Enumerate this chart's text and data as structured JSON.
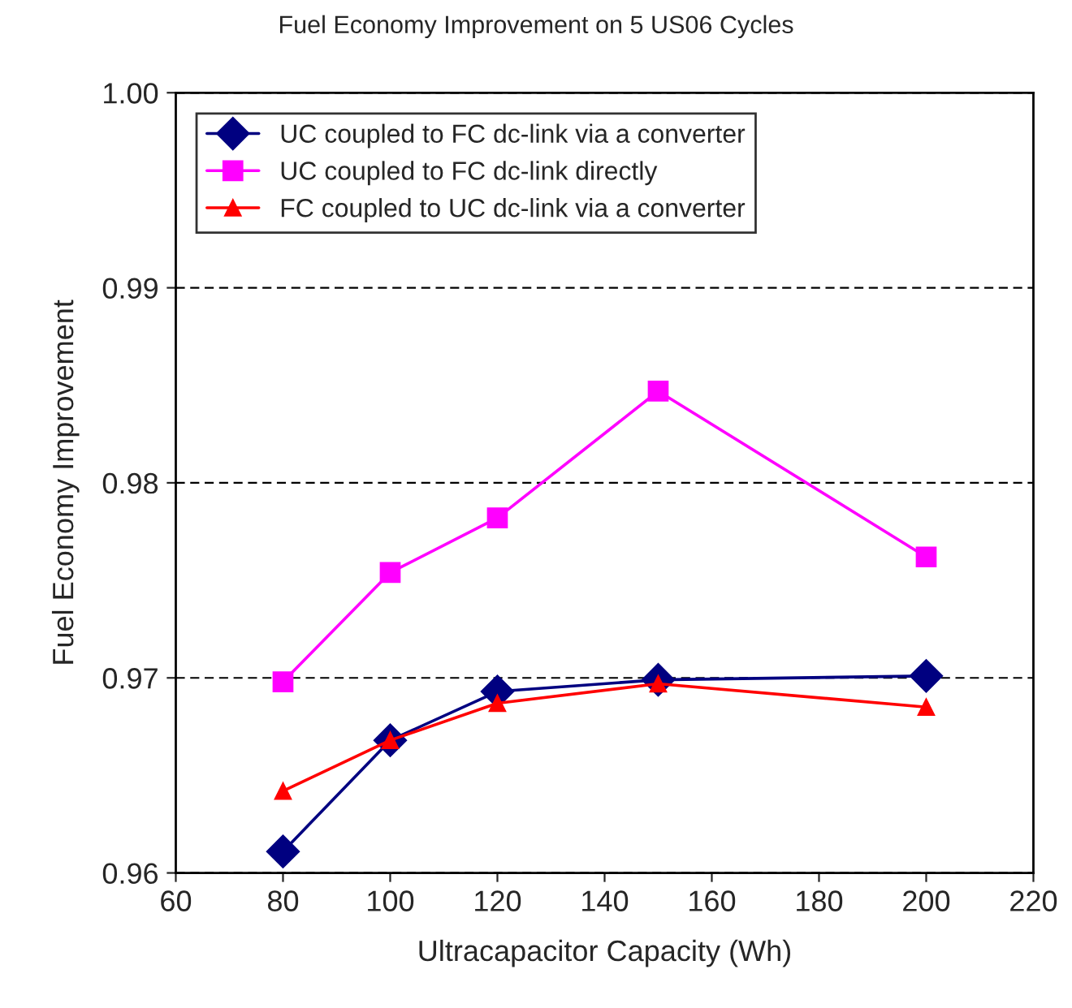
{
  "chart_data": {
    "type": "line",
    "title": "Fuel Economy Improvement on 5 US06 Cycles",
    "xlabel": "Ultracapacitor Capacity (Wh)",
    "ylabel": "Fuel Economy Improvement",
    "x": [
      80,
      100,
      120,
      150,
      200
    ],
    "series": [
      {
        "name": "UC coupled to FC dc-link via a converter",
        "color": "#000080",
        "marker": "diamond",
        "values": [
          0.9611,
          0.9668,
          0.9693,
          0.9699,
          0.9701
        ]
      },
      {
        "name": "UC coupled to FC dc-link directly",
        "color": "#ff00ff",
        "marker": "square",
        "values": [
          0.9698,
          0.9754,
          0.9782,
          0.9847,
          0.9762
        ]
      },
      {
        "name": "FC coupled to UC dc-link via a converter",
        "color": "#ff0000",
        "marker": "triangle",
        "values": [
          0.9642,
          0.9668,
          0.9687,
          0.9697,
          0.9685
        ]
      }
    ],
    "xlim": [
      60,
      220
    ],
    "xticks": [
      60,
      80,
      100,
      120,
      140,
      160,
      180,
      200,
      220
    ],
    "ylim": [
      0.96,
      1.0
    ],
    "yticks": [
      {
        "value": 0.96,
        "label": "0.96"
      },
      {
        "value": 0.97,
        "label": "0.97"
      },
      {
        "value": 0.98,
        "label": "0.98"
      },
      {
        "value": 0.99,
        "label": "0.99"
      },
      {
        "value": 1.0,
        "label": "1.00"
      }
    ],
    "grid": "y",
    "legend": "top left",
    "line_style": "solid"
  }
}
